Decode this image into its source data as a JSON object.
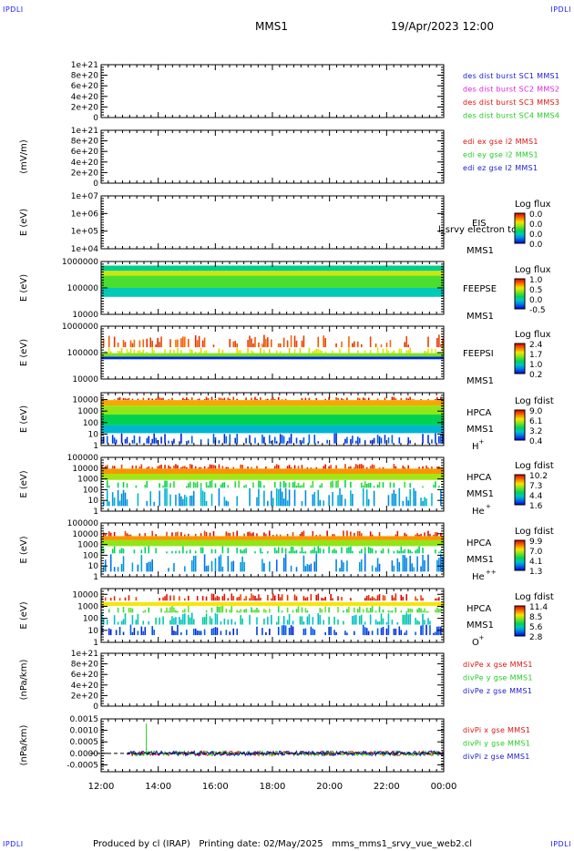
{
  "header": {
    "corner_left": "IPDLI",
    "corner_right": "IPDLI",
    "corner_bottom_left": "IPDLI",
    "corner_bottom_right": "IPDLI",
    "spacecraft": "MMS1",
    "datetime": "19/Apr/2023 12:00"
  },
  "footer": {
    "text": "Produced by cl (IRAP)   Printing date: 02/May/2025   mms_mms1_srvy_vue_web2.cl"
  },
  "colors": {
    "blue": "#1a1acc",
    "magenta": "#dd22dd",
    "red": "#dd1111",
    "green": "#22cc22"
  },
  "chart_data": {
    "type": "multi-panel",
    "x_axis": {
      "range": [
        "12:00",
        "00:00"
      ],
      "tick_labels": [
        "12:00",
        "14:00",
        "16:00",
        "18:00",
        "20:00",
        "22:00",
        "00:00"
      ],
      "minor_ticks_per_hour": 4
    },
    "panels": [
      {
        "type": "line",
        "ylabel": "",
        "ytick_labels": [
          "1e+21",
          "8e+20",
          "6e+20",
          "4e+20",
          "2e+20",
          "0"
        ],
        "ylim": [
          0,
          1e+21
        ],
        "zero_line": true,
        "legend": [
          {
            "text": "des dist burst SC1 MMS1",
            "color": "blue"
          },
          {
            "text": "des dist burst SC2 MMS2",
            "color": "magenta"
          },
          {
            "text": "des dist burst SC3 MMS3",
            "color": "red"
          },
          {
            "text": "des dist burst SC4 MMS4",
            "color": "green"
          }
        ]
      },
      {
        "type": "line",
        "ylabel": "(mV/m)",
        "ytick_labels": [
          "1e+21",
          "8e+20",
          "6e+20",
          "4e+20",
          "2e+20",
          "0"
        ],
        "ylim": [
          0,
          1e+21
        ],
        "zero_line": true,
        "legend": [
          {
            "text": "edi ex gse l2 MMS1",
            "color": "red"
          },
          {
            "text": "edi ey gse l2 MMS1",
            "color": "green"
          },
          {
            "text": "edi ez gse l2 MMS1",
            "color": "blue"
          }
        ]
      },
      {
        "type": "heatmap",
        "ylabel": "E (eV)",
        "ytick_labels": [
          "1e+07",
          "1e+06",
          "1e+05",
          "1e+04"
        ],
        "ylim": [
          10000.0,
          10000000.0
        ],
        "scale": "log",
        "instrument": [
          "EIS",
          "MMS1"
        ],
        "overlay_text": "l_srvy electron to",
        "colorbar_title": "Log flux",
        "colorbar_ticks": [
          "0.0",
          "0.0",
          "0.0",
          "0.0"
        ],
        "data_present": false
      },
      {
        "type": "heatmap",
        "ylabel": "E (eV)",
        "ytick_labels": [
          "1000000",
          "100000",
          "10000"
        ],
        "ylim": [
          10000.0,
          1000000.0
        ],
        "scale": "log",
        "instrument": [
          "FEEPSE",
          "MMS1"
        ],
        "colorbar_title": "Log flux",
        "colorbar_ticks": [
          "1.0",
          "0.5",
          "0.0",
          "-0.5"
        ],
        "data_start": "12:00",
        "bands": [
          {
            "from": 440000.0,
            "to": 700000.0,
            "value": 0.65
          },
          {
            "from": 290000.0,
            "to": 440000.0,
            "value": 0.35
          },
          {
            "from": 100000.0,
            "to": 290000.0,
            "value": 0.5
          },
          {
            "from": 46000.0,
            "to": 100000.0,
            "value": 0.7
          }
        ]
      },
      {
        "type": "heatmap",
        "ylabel": "E (eV)",
        "ytick_labels": [
          "1000000",
          "100000",
          "10000"
        ],
        "ylim": [
          10000.0,
          1000000.0
        ],
        "scale": "log",
        "instrument": [
          "FEEPSI",
          "MMS1"
        ],
        "colorbar_title": "Log flux",
        "colorbar_ticks": [
          "2.4",
          "1.7",
          "1.0",
          "0.2"
        ],
        "data_start": "12:00",
        "bands": [
          {
            "from": 160000.0,
            "to": 480000.0,
            "value": 0.1,
            "sparse": true
          },
          {
            "from": 95000.0,
            "to": 160000.0,
            "value": 0.3,
            "sparse": true
          },
          {
            "from": 70000.0,
            "to": 95000.0,
            "value": 0.45
          },
          {
            "from": 56000.0,
            "to": 70000.0,
            "value": 0.95
          }
        ]
      },
      {
        "type": "heatmap",
        "ylabel": "E (eV)",
        "ytick_labels": [
          "10000",
          "1000",
          "100",
          "10",
          "1"
        ],
        "ylim": [
          1,
          40000.0
        ],
        "scale": "log",
        "instrument": [
          "HPCA",
          "MMS1"
        ],
        "species": "H",
        "species_charge": "+",
        "colorbar_title": "Log fdist",
        "colorbar_ticks": [
          "9.0",
          "6.1",
          "3.2",
          "0.4"
        ],
        "data_start": "12:00",
        "bands": [
          {
            "from": 9000,
            "to": 18000,
            "value": 0.05,
            "sparse": true
          },
          {
            "from": 3000,
            "to": 9000,
            "value": 0.22
          },
          {
            "from": 500,
            "to": 3000,
            "value": 0.42
          },
          {
            "from": 60,
            "to": 500,
            "value": 0.58
          },
          {
            "from": 12,
            "to": 60,
            "value": 0.75
          },
          {
            "from": 1.5,
            "to": 12,
            "value": 0.92,
            "sparse": true
          }
        ]
      },
      {
        "type": "heatmap",
        "ylabel": "E (eV)",
        "ytick_labels": [
          "100000",
          "10000",
          "1000",
          "100",
          "10",
          "1"
        ],
        "ylim": [
          1,
          100000.0
        ],
        "scale": "log",
        "instrument": [
          "HPCA",
          "MMS1"
        ],
        "species": "He",
        "species_charge": "+",
        "colorbar_title": "Log fdist",
        "colorbar_ticks": [
          "10.2",
          "7.3",
          "4.4",
          "1.6"
        ],
        "data_start": "12:00",
        "bands": [
          {
            "from": 9000,
            "to": 25000,
            "value": 0.05,
            "sparse": true
          },
          {
            "from": 3000,
            "to": 9000,
            "value": 0.2
          },
          {
            "from": 800,
            "to": 3000,
            "value": 0.4
          },
          {
            "from": 150,
            "to": 800,
            "value": 0.55,
            "sparse": true
          },
          {
            "from": 3,
            "to": 150,
            "value": 0.78,
            "sparse": true
          }
        ]
      },
      {
        "type": "heatmap",
        "ylabel": "E (eV)",
        "ytick_labels": [
          "100000",
          "10000",
          "1000",
          "100",
          "10",
          "1"
        ],
        "ylim": [
          1,
          100000.0
        ],
        "scale": "log",
        "instrument": [
          "HPCA",
          "MMS1"
        ],
        "species": "He",
        "species_charge": "++",
        "colorbar_title": "Log fdist",
        "colorbar_ticks": [
          "9.9",
          "7.0",
          "4.1",
          "1.3"
        ],
        "data_start": "12:00",
        "bands": [
          {
            "from": 6000,
            "to": 20000,
            "value": 0.05,
            "sparse": true
          },
          {
            "from": 2500,
            "to": 6000,
            "value": 0.2
          },
          {
            "from": 700,
            "to": 2500,
            "value": 0.42
          },
          {
            "from": 150,
            "to": 700,
            "value": 0.6,
            "sparse": true
          },
          {
            "from": 3,
            "to": 150,
            "value": 0.82,
            "sparse": true
          }
        ]
      },
      {
        "type": "heatmap",
        "ylabel": "E (eV)",
        "ytick_labels": [
          "10000",
          "1000",
          "100",
          "10",
          "1"
        ],
        "ylim": [
          1,
          30000.0
        ],
        "scale": "log",
        "instrument": [
          "HPCA",
          "MMS1"
        ],
        "species": "O",
        "species_charge": "+",
        "colorbar_title": "Log fdist",
        "colorbar_ticks": [
          "11.4",
          "8.5",
          "5.6",
          "2.8"
        ],
        "data_start": "12:00",
        "bands": [
          {
            "from": 3000,
            "to": 12000,
            "value": 0.05,
            "sparse": true
          },
          {
            "from": 1100,
            "to": 2200,
            "value": 0.3
          },
          {
            "from": 300,
            "to": 1100,
            "value": 0.5,
            "sparse": true
          },
          {
            "from": 30,
            "to": 300,
            "value": 0.7,
            "sparse": true
          },
          {
            "from": 4,
            "to": 30,
            "value": 0.92,
            "sparse": true
          }
        ]
      },
      {
        "type": "line",
        "ylabel": "(nPa/km)",
        "ytick_labels": [
          "1e+21",
          "8e+20",
          "6e+20",
          "4e+20",
          "2e+20",
          "0"
        ],
        "ylim": [
          0,
          1e+21
        ],
        "zero_line": true,
        "legend": [
          {
            "text": "divPe x gse MMS1",
            "color": "red"
          },
          {
            "text": "divPe y gse MMS1",
            "color": "green"
          },
          {
            "text": "divPe z gse MMS1",
            "color": "blue"
          }
        ]
      },
      {
        "type": "line",
        "ylabel": "(nPa/km)",
        "ytick_labels": [
          "0.0015",
          "0.0010",
          "0.0005",
          "0.0000",
          "-0.0005"
        ],
        "ylim": [
          -0.0008,
          0.0015
        ],
        "zero_line": true,
        "data_start": "12:55",
        "noise_amplitude": 0.0001,
        "spike": {
          "time": "13:35",
          "value": 0.0013,
          "series": "green"
        },
        "legend": [
          {
            "text": "divPi x gse MMS1",
            "color": "red"
          },
          {
            "text": "divPi y gse MMS1",
            "color": "green"
          },
          {
            "text": "divPi z gse MMS1",
            "color": "blue"
          }
        ]
      }
    ]
  }
}
